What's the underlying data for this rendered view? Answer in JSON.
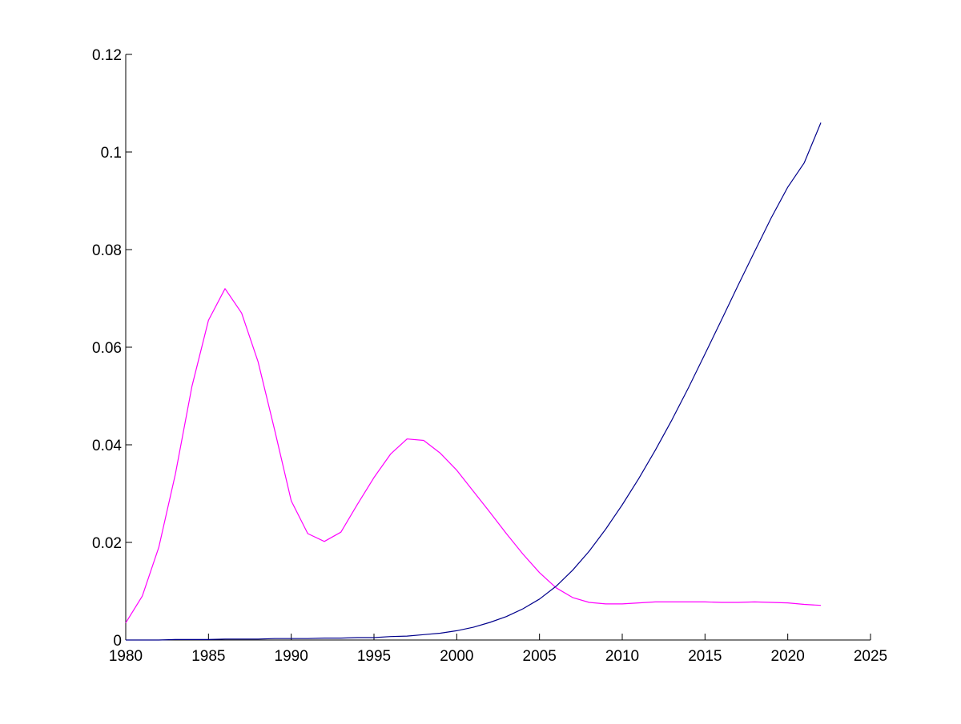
{
  "chart_data": {
    "type": "line",
    "title": "",
    "xlabel": "",
    "ylabel": "",
    "xlim": [
      1980,
      2025
    ],
    "ylim": [
      0,
      0.12
    ],
    "xticks": [
      1980,
      1985,
      1990,
      1995,
      2000,
      2005,
      2010,
      2015,
      2020,
      2025
    ],
    "xtick_labels": [
      "1980",
      "1985",
      "1990",
      "1995",
      "2000",
      "2005",
      "2010",
      "2015",
      "2020",
      "2025"
    ],
    "yticks": [
      0,
      0.02,
      0.04,
      0.06,
      0.08,
      0.1,
      0.12
    ],
    "ytick_labels": [
      "0",
      "0.02",
      "0.04",
      "0.06",
      "0.08",
      "0.1",
      "0.12"
    ],
    "grid": false,
    "legend": "none",
    "x": [
      1980,
      1981,
      1982,
      1983,
      1984,
      1985,
      1986,
      1987,
      1988,
      1989,
      1990,
      1991,
      1992,
      1993,
      1994,
      1995,
      1996,
      1997,
      1998,
      1999,
      2000,
      2001,
      2002,
      2003,
      2004,
      2005,
      2006,
      2007,
      2008,
      2009,
      2010,
      2011,
      2012,
      2013,
      2014,
      2015,
      2016,
      2017,
      2018,
      2019,
      2020,
      2021,
      2022
    ],
    "series": [
      {
        "color": "#ff00ff",
        "values": [
          0.0035,
          0.009,
          0.019,
          0.034,
          0.052,
          0.0655,
          0.072,
          0.067,
          0.057,
          0.043,
          0.0285,
          0.0218,
          0.0202,
          0.0221,
          0.0278,
          0.0333,
          0.0381,
          0.0412,
          0.0409,
          0.0383,
          0.0348,
          0.0305,
          0.0262,
          0.0218,
          0.0176,
          0.0138,
          0.0107,
          0.0087,
          0.0077,
          0.0074,
          0.0074,
          0.0076,
          0.0078,
          0.0078,
          0.0078,
          0.0078,
          0.0077,
          0.0077,
          0.0078,
          0.0077,
          0.0076,
          0.0073,
          0.0071
        ]
      },
      {
        "color": "#00008b",
        "values": [
          0.0,
          0.0,
          0.0,
          0.0001,
          0.0001,
          0.0001,
          0.0002,
          0.0002,
          0.0002,
          0.0003,
          0.0003,
          0.0003,
          0.0004,
          0.0004,
          0.0005,
          0.0005,
          0.0007,
          0.0008,
          0.0011,
          0.0014,
          0.0019,
          0.0026,
          0.0036,
          0.0048,
          0.0064,
          0.0084,
          0.011,
          0.0143,
          0.0182,
          0.0227,
          0.0277,
          0.0331,
          0.0389,
          0.0451,
          0.0517,
          0.0586,
          0.0656,
          0.0727,
          0.0796,
          0.0865,
          0.0928,
          0.0978,
          0.106
        ]
      }
    ]
  }
}
